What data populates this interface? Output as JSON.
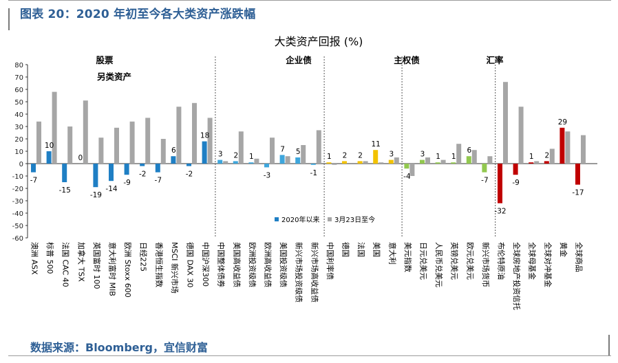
{
  "figure": {
    "title": "图表 20：2020 年初至今各大类资产涨跌幅",
    "source": "数据来源：Bloomberg，宜信财富"
  },
  "chart_data": {
    "type": "bar",
    "title": "大类资产回报 (%)",
    "ylim": [
      -60,
      80
    ],
    "yticks": [
      80,
      70,
      60,
      50,
      40,
      30,
      20,
      10,
      0,
      -10,
      -20,
      -30,
      -40,
      -50,
      -60
    ],
    "grid": false,
    "legend_position": "bottom-center",
    "groups": [
      {
        "label": "股票",
        "sublabel": "另类资产"
      },
      {
        "label": "企业债"
      },
      {
        "label": "主权债"
      },
      {
        "label": "汇率"
      }
    ],
    "series": [
      {
        "name": "2020年以来",
        "color": "#1f7fc4"
      },
      {
        "name": "3月23日至今",
        "color": "#a6a6a6"
      }
    ],
    "items": [
      {
        "name": "澳洲 ASX",
        "v1": -7,
        "v2": 34,
        "label": "-7",
        "color": "#1f7fc4",
        "group": 0
      },
      {
        "name": "标普 500",
        "v1": 10,
        "v2": 58,
        "label": "10",
        "color": "#1f7fc4",
        "group": 0
      },
      {
        "name": "法国 CAC 40",
        "v1": -15,
        "v2": 30,
        "label": "-15",
        "color": "#1f7fc4",
        "group": 0
      },
      {
        "name": "加拿大 TSX",
        "v1": 0,
        "v2": 51,
        "label": "0",
        "color": "#1f7fc4",
        "group": 0
      },
      {
        "name": "英国富时 100",
        "v1": -19,
        "v2": 21,
        "label": "-19",
        "color": "#1f7fc4",
        "group": 0
      },
      {
        "name": "意大利富时 MIB",
        "v1": -14,
        "v2": 29,
        "label": "-14",
        "color": "#1f7fc4",
        "group": 0
      },
      {
        "name": "欧洲 Stoxx 600",
        "v1": -9,
        "v2": 34,
        "label": "-9",
        "color": "#1f7fc4",
        "group": 0
      },
      {
        "name": "日经225",
        "v1": -2,
        "v2": 37,
        "label": "-2",
        "color": "#1f7fc4",
        "group": 0
      },
      {
        "name": "香港恒生指数",
        "v1": -7,
        "v2": 20,
        "label": "-7",
        "color": "#1f7fc4",
        "group": 0
      },
      {
        "name": "MSCI 新兴市场",
        "v1": 6,
        "v2": 46,
        "label": "6",
        "color": "#1f7fc4",
        "group": 0
      },
      {
        "name": "德国 DAX 30",
        "v1": -2,
        "v2": 49,
        "label": "-2",
        "color": "#1f7fc4",
        "group": 0
      },
      {
        "name": "中国沪深300",
        "v1": 18,
        "v2": 37,
        "label": "18",
        "color": "#1f7fc4",
        "group": 0
      },
      {
        "name": "中国整体债券",
        "v1": 3,
        "v2": 2,
        "label": "3",
        "color": "#3ea6dc",
        "group": 1
      },
      {
        "name": "美国高收益债",
        "v1": 2,
        "v2": 26,
        "label": "2",
        "color": "#3ea6dc",
        "group": 1
      },
      {
        "name": "欧洲投资级债",
        "v1": 1,
        "v2": 4,
        "label": "1",
        "color": "#3ea6dc",
        "group": 1
      },
      {
        "name": "欧洲高收益债",
        "v1": -3,
        "v2": 21,
        "label": "-3",
        "color": "#3ea6dc",
        "group": 1
      },
      {
        "name": "美国投资级债",
        "v1": 7,
        "v2": 6,
        "label": "7",
        "color": "#3ea6dc",
        "group": 1
      },
      {
        "name": "新兴市场投资级债",
        "v1": 5,
        "v2": 15,
        "label": "5",
        "color": "#3ea6dc",
        "group": 1
      },
      {
        "name": "新兴市场高收益债",
        "v1": -1,
        "v2": 27,
        "label": "-1",
        "color": "#3ea6dc",
        "group": 1
      },
      {
        "name": "中国利率债",
        "v1": 1,
        "v2": -1,
        "label": "1",
        "color": "#f2c200",
        "group": 2
      },
      {
        "name": "德国",
        "v1": 2,
        "v2": 0,
        "label": "2",
        "color": "#f2c200",
        "group": 2
      },
      {
        "name": "法国",
        "v1": 2,
        "v2": 2,
        "label": "2",
        "color": "#f2c200",
        "group": 2
      },
      {
        "name": "美国",
        "v1": 11,
        "v2": 1,
        "label": "11",
        "color": "#f2c200",
        "group": 2
      },
      {
        "name": "意大利",
        "v1": 3,
        "v2": 5,
        "label": "3",
        "color": "#f2c200",
        "group": 2
      },
      {
        "name": "美元指数",
        "v1": -4,
        "v2": -10,
        "label": "-4",
        "color": "#92c84f",
        "group": 3
      },
      {
        "name": "日元兑美元",
        "v1": 3,
        "v2": 5,
        "label": "3",
        "color": "#92c84f",
        "group": 3
      },
      {
        "name": "人民币兑美元",
        "v1": 1,
        "v2": 3,
        "label": "1",
        "color": "#92c84f",
        "group": 3
      },
      {
        "name": "英镑兑美元",
        "v1": 1,
        "v2": 16,
        "label": "1",
        "color": "#92c84f",
        "group": 3
      },
      {
        "name": "欧元兑美元",
        "v1": 6,
        "v2": 11,
        "label": "6",
        "color": "#92c84f",
        "group": 3
      },
      {
        "name": "新兴市场货币",
        "v1": -7,
        "v2": 6,
        "label": "-7",
        "color": "#92c84f",
        "group": 3
      },
      {
        "name": "布伦特原油",
        "v1": -32,
        "v2": 66,
        "label": "-32",
        "color": "#c00000",
        "group": 4
      },
      {
        "name": "全球房地产投资信托",
        "v1": -9,
        "v2": 46,
        "label": "-9",
        "color": "#c00000",
        "group": 4
      },
      {
        "name": "全球母基金",
        "v1": 1,
        "v2": 2,
        "label": "1",
        "color": "#c00000",
        "group": 4
      },
      {
        "name": "全球对冲基金",
        "v1": 2,
        "v2": 12,
        "label": "2",
        "color": "#c00000",
        "group": 4
      },
      {
        "name": "黄金",
        "v1": 29,
        "v2": 26,
        "label": "29",
        "color": "#c00000",
        "group": 4
      },
      {
        "name": "全球商品",
        "v1": -17,
        "v2": 23,
        "label": "-17",
        "color": "#c00000",
        "group": 4
      }
    ]
  }
}
